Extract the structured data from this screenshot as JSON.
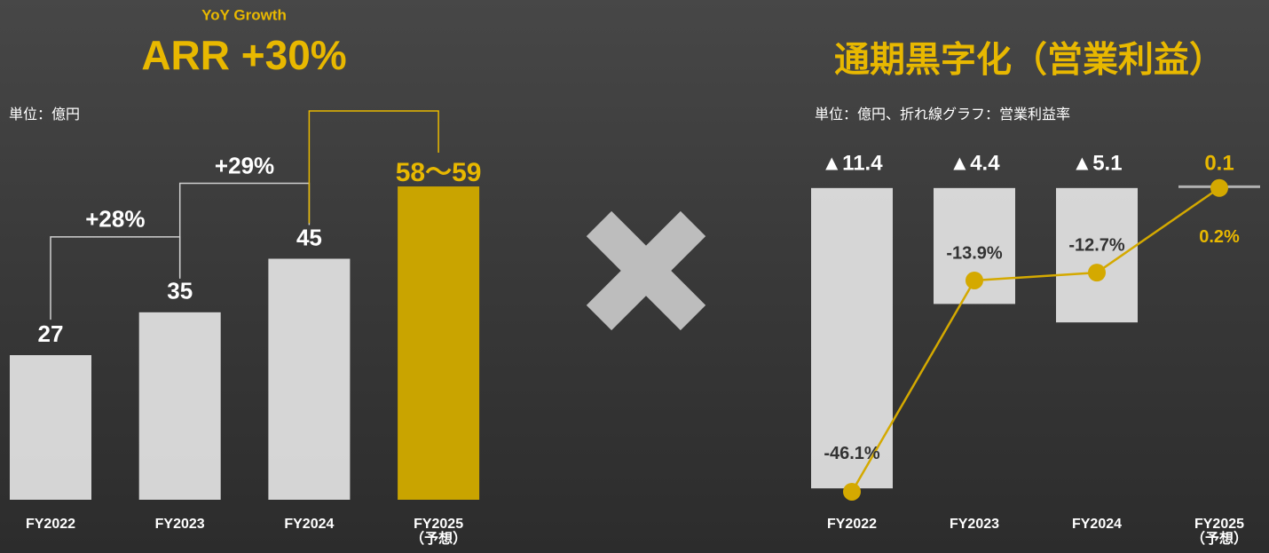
{
  "chart_data": [
    {
      "type": "bar",
      "subtitle": "YoY Growth",
      "title": "ARR +30%",
      "unit": "単位：億円",
      "categories": [
        "FY2022",
        "FY2023",
        "FY2024",
        "FY2025\n（予想）"
      ],
      "values": [
        27,
        35,
        45,
        58.5
      ],
      "value_labels": [
        "27",
        "35",
        "45",
        "58〜59"
      ],
      "colors": [
        "#e4e4e4",
        "#e4e4e4",
        "#e4e4e4",
        "#c9a400"
      ],
      "growth_labels": [
        "+28%",
        "+29%"
      ],
      "ylim": [
        0,
        60
      ]
    },
    {
      "type": "bar_line",
      "title": "通期黒字化（営業利益）",
      "unit": "単位：億円、折れ線グラフ：営業利益率",
      "categories": [
        "FY2022",
        "FY2023",
        "FY2024",
        "FY2025\n（予想）"
      ],
      "series": [
        {
          "color": "#e4e4e4",
          "values": [
            -11.4,
            -4.4,
            -5.1,
            0.1
          ],
          "value_labels": [
            "▲11.4",
            "▲4.4",
            "▲5.1",
            "0.1"
          ]
        },
        {
          "color": "#d4a900",
          "axis": "y2",
          "values": [
            -46.1,
            -13.9,
            -12.7,
            0.2
          ],
          "value_labels": [
            "-46.1%",
            "-13.9%",
            "-12.7%",
            "0.2%"
          ]
        }
      ],
      "ylim": [
        -12,
        0.5
      ],
      "y2lim": [
        -48,
        2.2
      ]
    }
  ]
}
